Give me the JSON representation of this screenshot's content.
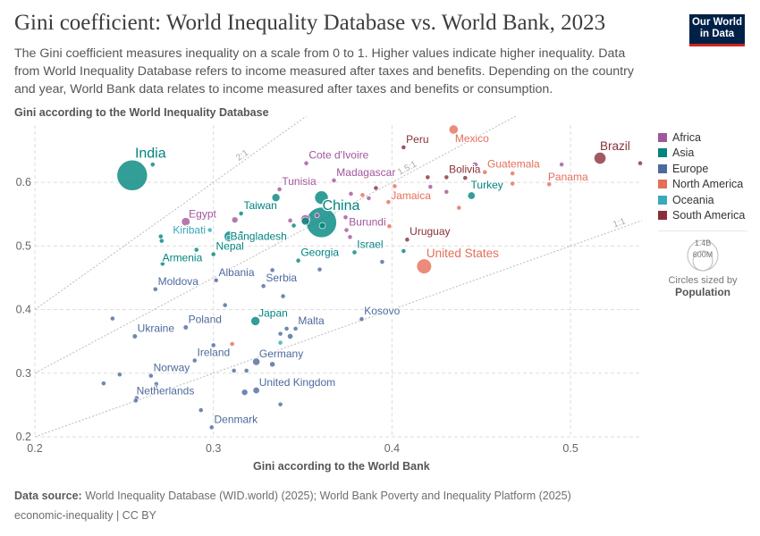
{
  "header": {
    "title": "Gini coefficient: World Inequality Database vs. World Bank, 2023",
    "subtitle": "The Gini coefficient measures inequality on a scale from 0 to 1. Higher values indicate higher inequality. Data from World Inequality Database refers to income measured after taxes and benefits. Depending on the country and year, World Bank data relates to income measured after taxes and benefits or consumption.",
    "logo": "Our World in Data"
  },
  "footer": {
    "source_label": "Data source:",
    "source": "World Inequality Database (WID.world) (2025); World Bank Poverty and Inequality Platform (2025)",
    "license": "economic-inequality | CC BY"
  },
  "size_legend": {
    "big": "1.4B",
    "small": "600M",
    "caption": "Circles sized by",
    "variable": "Population"
  },
  "chart_data": {
    "type": "scatter",
    "xlabel": "Gini according to the World Bank",
    "ylabel": "Gini according to the World Inequality Database",
    "xlim": [
      0.2,
      0.54
    ],
    "ylim": [
      0.2,
      0.69
    ],
    "xticks": [
      0.2,
      0.3,
      0.4,
      0.5
    ],
    "yticks": [
      0.2,
      0.3,
      0.4,
      0.5,
      0.6
    ],
    "grid": true,
    "legend_position": "right",
    "ratio_lines": [
      {
        "label": "1:1",
        "ratio": 1
      },
      {
        "label": "1.5:1",
        "ratio": 1.5
      },
      {
        "label": "2:1",
        "ratio": 2
      }
    ],
    "regions": [
      {
        "name": "Africa",
        "color": "#a2559c"
      },
      {
        "name": "Asia",
        "color": "#00847e"
      },
      {
        "name": "Europe",
        "color": "#4c6a9c"
      },
      {
        "name": "North America",
        "color": "#e56e5a"
      },
      {
        "name": "Oceania",
        "color": "#38aaba"
      },
      {
        "name": "South America",
        "color": "#883039"
      }
    ],
    "points": [
      {
        "label": "India",
        "region": "Asia",
        "x": 0.2545,
        "y": 0.611,
        "pop": 1430
      },
      {
        "label": "China",
        "region": "Asia",
        "x": 0.3605,
        "y": 0.537,
        "pop": 1410
      },
      {
        "label": "Cote d'Ivoire",
        "region": "Africa",
        "x": 0.352,
        "y": 0.63,
        "pop": 30
      },
      {
        "label": "Peru",
        "region": "South America",
        "x": 0.4065,
        "y": 0.655,
        "pop": 34
      },
      {
        "label": "Mexico",
        "region": "North America",
        "x": 0.4345,
        "y": 0.683,
        "pop": 129
      },
      {
        "label": "Brazil",
        "region": "South America",
        "x": 0.5165,
        "y": 0.638,
        "pop": 216
      },
      {
        "label": "Guatemala",
        "region": "North America",
        "x": 0.452,
        "y": 0.616,
        "pop": 18
      },
      {
        "label": "Panama",
        "region": "North America",
        "x": 0.488,
        "y": 0.597,
        "pop": 4
      },
      {
        "label": "Bolivia",
        "region": "South America",
        "x": 0.4305,
        "y": 0.608,
        "pop": 12
      },
      {
        "label": "Turkey",
        "region": "Asia",
        "x": 0.4445,
        "y": 0.579,
        "pop": 86
      },
      {
        "label": "Jamaica",
        "region": "North America",
        "x": 0.398,
        "y": 0.569,
        "pop": 3
      },
      {
        "label": "Madagascar",
        "region": "Africa",
        "x": 0.3675,
        "y": 0.603,
        "pop": 31
      },
      {
        "label": "Tunisia",
        "region": "Africa",
        "x": 0.337,
        "y": 0.589,
        "pop": 12
      },
      {
        "label": "Taiwan",
        "region": "Asia",
        "x": 0.3155,
        "y": 0.551,
        "pop": 24
      },
      {
        "label": "Bangladesh",
        "region": "Asia",
        "x": 0.309,
        "y": 0.515,
        "pop": 173
      },
      {
        "label": "Egypt",
        "region": "Africa",
        "x": 0.2845,
        "y": 0.538,
        "pop": 113
      },
      {
        "label": "Kiribati",
        "region": "Oceania",
        "x": 0.298,
        "y": 0.525,
        "pop": 0.1
      },
      {
        "label": "Nepal",
        "region": "Asia",
        "x": 0.3,
        "y": 0.487,
        "pop": 30
      },
      {
        "label": "Armenia",
        "region": "Asia",
        "x": 0.2715,
        "y": 0.472,
        "pop": 3
      },
      {
        "label": "Albania",
        "region": "Europe",
        "x": 0.3015,
        "y": 0.446,
        "pop": 3
      },
      {
        "label": "Georgia",
        "region": "Asia",
        "x": 0.3475,
        "y": 0.477,
        "pop": 4
      },
      {
        "label": "Burundi",
        "region": "Africa",
        "x": 0.3745,
        "y": 0.525,
        "pop": 13
      },
      {
        "label": "Israel",
        "region": "Asia",
        "x": 0.379,
        "y": 0.49,
        "pop": 9
      },
      {
        "label": "Uruguay",
        "region": "South America",
        "x": 0.4085,
        "y": 0.51,
        "pop": 3
      },
      {
        "label": "United States",
        "region": "North America",
        "x": 0.418,
        "y": 0.468,
        "pop": 340
      },
      {
        "label": "Moldova",
        "region": "Europe",
        "x": 0.2675,
        "y": 0.432,
        "pop": 3
      },
      {
        "label": "Serbia",
        "region": "Europe",
        "x": 0.328,
        "y": 0.437,
        "pop": 7
      },
      {
        "label": "Kosovo",
        "region": "Europe",
        "x": 0.383,
        "y": 0.385,
        "pop": 2
      },
      {
        "label": "Japan",
        "region": "Asia",
        "x": 0.3235,
        "y": 0.382,
        "pop": 124
      },
      {
        "label": "Malta",
        "region": "Europe",
        "x": 0.346,
        "y": 0.37,
        "pop": 0.5
      },
      {
        "label": "Poland",
        "region": "Europe",
        "x": 0.2845,
        "y": 0.372,
        "pop": 38
      },
      {
        "label": "Ukraine",
        "region": "Europe",
        "x": 0.256,
        "y": 0.358,
        "pop": 38
      },
      {
        "label": "Ireland",
        "region": "Europe",
        "x": 0.2895,
        "y": 0.32,
        "pop": 5
      },
      {
        "label": "Germany",
        "region": "Europe",
        "x": 0.324,
        "y": 0.318,
        "pop": 84
      },
      {
        "label": "Norway",
        "region": "Europe",
        "x": 0.265,
        "y": 0.296,
        "pop": 5
      },
      {
        "label": "Netherlands",
        "region": "Europe",
        "x": 0.257,
        "y": 0.261,
        "pop": 18
      },
      {
        "label": "United Kingdom",
        "region": "Europe",
        "x": 0.324,
        "y": 0.273,
        "pop": 68
      },
      {
        "label": "Denmark",
        "region": "Europe",
        "x": 0.299,
        "y": 0.215,
        "pop": 6
      },
      {
        "region": "Asia",
        "x": 0.266,
        "y": 0.628,
        "pop": 10
      },
      {
        "region": "Asia",
        "x": 0.335,
        "y": 0.576,
        "pop": 100
      },
      {
        "region": "Asia",
        "x": 0.3605,
        "y": 0.576,
        "pop": 280
      },
      {
        "region": "Asia",
        "x": 0.3515,
        "y": 0.539,
        "pop": 100
      },
      {
        "region": "Asia",
        "x": 0.361,
        "y": 0.532,
        "pop": 60
      },
      {
        "region": "Asia",
        "x": 0.345,
        "y": 0.532,
        "pop": 15
      },
      {
        "region": "Asia",
        "x": 0.2705,
        "y": 0.515,
        "pop": 4
      },
      {
        "region": "Asia",
        "x": 0.271,
        "y": 0.508,
        "pop": 4
      },
      {
        "region": "Asia",
        "x": 0.3155,
        "y": 0.52,
        "pop": 8
      },
      {
        "region": "Asia",
        "x": 0.4065,
        "y": 0.492,
        "pop": 10
      },
      {
        "region": "Asia",
        "x": 0.2905,
        "y": 0.494,
        "pop": 5
      },
      {
        "region": "Oceania",
        "x": 0.3085,
        "y": 0.513,
        "pop": 2
      },
      {
        "region": "Oceania",
        "x": 0.3375,
        "y": 0.348,
        "pop": 2
      },
      {
        "region": "Europe",
        "x": 0.333,
        "y": 0.462,
        "pop": 2
      },
      {
        "region": "Europe",
        "x": 0.3595,
        "y": 0.463,
        "pop": 2
      },
      {
        "region": "Europe",
        "x": 0.3945,
        "y": 0.475,
        "pop": 2
      },
      {
        "region": "Europe",
        "x": 0.339,
        "y": 0.421,
        "pop": 2
      },
      {
        "region": "Europe",
        "x": 0.3065,
        "y": 0.407,
        "pop": 2
      },
      {
        "region": "Europe",
        "x": 0.2435,
        "y": 0.386,
        "pop": 2
      },
      {
        "region": "Europe",
        "x": 0.341,
        "y": 0.37,
        "pop": 2
      },
      {
        "region": "Europe",
        "x": 0.3375,
        "y": 0.362,
        "pop": 2
      },
      {
        "region": "Europe",
        "x": 0.343,
        "y": 0.358,
        "pop": 48
      },
      {
        "region": "Europe",
        "x": 0.3,
        "y": 0.344,
        "pop": 2
      },
      {
        "region": "Europe",
        "x": 0.333,
        "y": 0.314,
        "pop": 47
      },
      {
        "region": "Europe",
        "x": 0.3115,
        "y": 0.304,
        "pop": 2
      },
      {
        "region": "Europe",
        "x": 0.3185,
        "y": 0.304,
        "pop": 2
      },
      {
        "region": "Europe",
        "x": 0.2385,
        "y": 0.284,
        "pop": 2
      },
      {
        "region": "Europe",
        "x": 0.2475,
        "y": 0.298,
        "pop": 2
      },
      {
        "region": "Europe",
        "x": 0.268,
        "y": 0.283,
        "pop": 2
      },
      {
        "region": "Europe",
        "x": 0.2675,
        "y": 0.278,
        "pop": 2
      },
      {
        "region": "Europe",
        "x": 0.3175,
        "y": 0.27,
        "pop": 60
      },
      {
        "region": "Europe",
        "x": 0.3375,
        "y": 0.251,
        "pop": 2
      },
      {
        "region": "Europe",
        "x": 0.293,
        "y": 0.242,
        "pop": 2
      },
      {
        "region": "Europe",
        "x": 0.2565,
        "y": 0.257,
        "pop": 2
      },
      {
        "region": "North America",
        "x": 0.3105,
        "y": 0.346,
        "pop": 4
      },
      {
        "region": "North America",
        "x": 0.4015,
        "y": 0.594,
        "pop": 2
      },
      {
        "region": "North America",
        "x": 0.3835,
        "y": 0.58,
        "pop": 2
      },
      {
        "region": "North America",
        "x": 0.3985,
        "y": 0.531,
        "pop": 2
      },
      {
        "region": "North America",
        "x": 0.4375,
        "y": 0.56,
        "pop": 2
      },
      {
        "region": "North America",
        "x": 0.4675,
        "y": 0.614,
        "pop": 2
      },
      {
        "region": "North America",
        "x": 0.4675,
        "y": 0.598,
        "pop": 2
      },
      {
        "region": "Africa",
        "x": 0.3515,
        "y": 0.542,
        "pop": 130
      },
      {
        "region": "Africa",
        "x": 0.312,
        "y": 0.541,
        "pop": 60
      },
      {
        "region": "Africa",
        "x": 0.377,
        "y": 0.582,
        "pop": 20
      },
      {
        "region": "Africa",
        "x": 0.387,
        "y": 0.575,
        "pop": 5
      },
      {
        "region": "Africa",
        "x": 0.4465,
        "y": 0.627,
        "pop": 60
      },
      {
        "region": "Africa",
        "x": 0.495,
        "y": 0.628,
        "pop": 5
      },
      {
        "region": "Africa",
        "x": 0.4215,
        "y": 0.593,
        "pop": 5
      },
      {
        "region": "Africa",
        "x": 0.4305,
        "y": 0.585,
        "pop": 2
      },
      {
        "region": "Africa",
        "x": 0.374,
        "y": 0.545,
        "pop": 2
      },
      {
        "region": "Africa",
        "x": 0.343,
        "y": 0.54,
        "pop": 5
      },
      {
        "region": "Africa",
        "x": 0.358,
        "y": 0.548,
        "pop": 5
      },
      {
        "region": "Africa",
        "x": 0.3765,
        "y": 0.514,
        "pop": 2
      },
      {
        "region": "South America",
        "x": 0.539,
        "y": 0.63,
        "pop": 5
      },
      {
        "region": "South America",
        "x": 0.42,
        "y": 0.608,
        "pop": 2
      },
      {
        "region": "South America",
        "x": 0.441,
        "y": 0.607,
        "pop": 2
      },
      {
        "region": "South America",
        "x": 0.391,
        "y": 0.591,
        "pop": 2
      }
    ]
  }
}
